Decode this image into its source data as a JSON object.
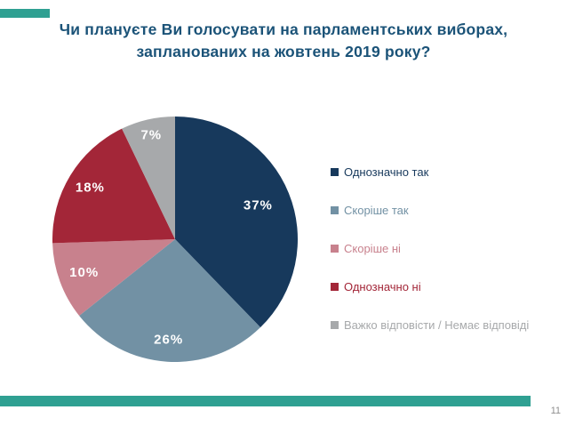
{
  "title": {
    "line1": "Чи плануєте Ви голосувати на парламентських виборах,",
    "line2": "запланованих на жовтень 2019 року?",
    "color": "#1B5378"
  },
  "chart_data": {
    "type": "pie",
    "title": "Чи плануєте Ви голосувати на парламентських виборах, запланованих на жовтень 2019 року?",
    "categories": [
      "Однозначно так",
      "Скоріше так",
      "Скоріше ні",
      "Однозначно ні",
      "Важко відповісти / Немає відповіді"
    ],
    "values": [
      37,
      26,
      10,
      18,
      7
    ],
    "unit": "%",
    "data_labels": [
      "37%",
      "26%",
      "10%",
      "18%",
      "7%"
    ],
    "colors": [
      "#17395C",
      "#7291A4",
      "#C8818D",
      "#A32638",
      "#A7A9AB"
    ],
    "label_color": "#FFFFFF",
    "start_angle_deg": 0,
    "direction": "clockwise",
    "legend_position": "right"
  },
  "footer": {
    "page_number": "11",
    "page_number_color": "#8F8F8F"
  },
  "accent": {
    "bar_color": "#2FA092"
  }
}
